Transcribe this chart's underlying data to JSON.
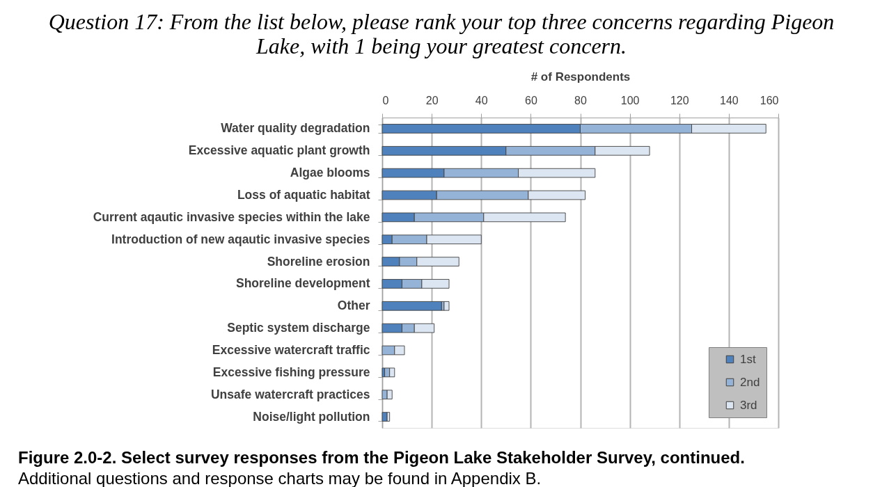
{
  "chart_data": {
    "type": "bar",
    "orientation": "horizontal",
    "stacked": true,
    "title": "Question 17:  From the list below, please rank your top three concerns regarding Pigeon Lake, with 1 being your greatest concern.",
    "xlabel": "# of Respondents",
    "categories": [
      "Water quality degradation",
      "Excessive aquatic plant growth",
      "Algae blooms",
      "Loss of aquatic habitat",
      "Current aqautic invasive species within the lake",
      "Introduction of new aqautic invasive species",
      "Shoreline erosion",
      "Shoreline development",
      "Other",
      "Septic system discharge",
      "Excessive watercraft traffic",
      "Excessive fishing pressure",
      "Unsafe watercraft practices",
      "Noise/light pollution"
    ],
    "series": [
      {
        "name": "1st",
        "color": "#4f81bd",
        "values": [
          80,
          50,
          25,
          22,
          13,
          4,
          7,
          8,
          24,
          8,
          0,
          1,
          0,
          2
        ]
      },
      {
        "name": "2nd",
        "color": "#95b3d7",
        "values": [
          45,
          36,
          30,
          37,
          28,
          14,
          7,
          8,
          1,
          5,
          5,
          2,
          2,
          0
        ]
      },
      {
        "name": "3rd",
        "color": "#dce6f2",
        "values": [
          30,
          22,
          31,
          23,
          33,
          22,
          17,
          11,
          2,
          8,
          4,
          2,
          2,
          1
        ]
      }
    ],
    "xlim": [
      0,
      160
    ],
    "xticks": [
      0,
      20,
      40,
      60,
      80,
      100,
      120,
      140,
      160
    ],
    "grid": "x",
    "legend": "bottom right",
    "annotations": [
      "Figure 2.0-2.  Select survey responses from the Pigeon Lake Stakeholder Survey, continued.",
      "Additional questions and response charts may be found in Appendix B."
    ]
  }
}
